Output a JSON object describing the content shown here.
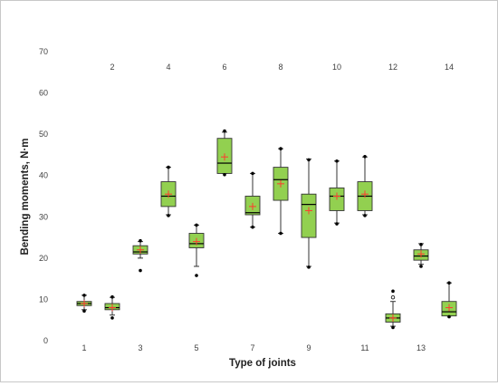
{
  "chart_data": {
    "type": "box",
    "title": "",
    "xlabel": "Type of joints",
    "ylabel": "Bending moments, N·m",
    "ylim": [
      0,
      70
    ],
    "yticks": [
      0,
      10,
      20,
      30,
      40,
      50,
      60,
      70
    ],
    "grid": false,
    "legend": "none",
    "x_tick_labels_bottom": [
      "1",
      "3",
      "5",
      "7",
      "9",
      "11",
      "13"
    ],
    "x_tick_labels_top": [
      "2",
      "4",
      "6",
      "8",
      "10",
      "12",
      "14"
    ],
    "colors": {
      "box_fill": "#92D050",
      "box_edge": "#333333",
      "median": "#000000",
      "mean_marker": "#FF3B2F",
      "whisker": "#333333"
    },
    "boxes": [
      {
        "category": "1",
        "whisker_low": 7.5,
        "q1": 8.5,
        "median": 9.0,
        "q3": 9.5,
        "whisker_high": 11.0,
        "mean": 9.0,
        "outliers": [
          7.2,
          11.0
        ]
      },
      {
        "category": "2",
        "whisker_low": 6.2,
        "q1": 7.5,
        "median": 8.0,
        "q3": 9.0,
        "whisker_high": 10.5,
        "mean": 8.0,
        "outliers": [
          5.5,
          10.6
        ]
      },
      {
        "category": "3",
        "whisker_low": 20.0,
        "q1": 21.0,
        "median": 21.5,
        "q3": 23.0,
        "whisker_high": 24.0,
        "mean": 22.0,
        "outliers": [
          17.0,
          24.2
        ]
      },
      {
        "category": "4",
        "whisker_low": 30.5,
        "q1": 32.5,
        "median": 35.0,
        "q3": 38.5,
        "whisker_high": 42.0,
        "mean": 35.5,
        "outliers": [
          30.3,
          42.0
        ]
      },
      {
        "category": "5",
        "whisker_low": 18.0,
        "q1": 22.5,
        "median": 23.5,
        "q3": 26.0,
        "whisker_high": 28.0,
        "mean": 24.0,
        "outliers": [
          15.8,
          28.0
        ]
      },
      {
        "category": "6",
        "whisker_low": 40.5,
        "q1": 40.5,
        "median": 43.0,
        "q3": 49.0,
        "whisker_high": 50.5,
        "mean": 44.5,
        "outliers": [
          40.2,
          50.8
        ]
      },
      {
        "category": "7",
        "whisker_low": 27.5,
        "q1": 30.5,
        "median": 31.0,
        "q3": 35.0,
        "whisker_high": 40.5,
        "mean": 32.5,
        "outliers": [
          27.5,
          40.5
        ]
      },
      {
        "category": "8",
        "whisker_low": 26.0,
        "q1": 34.0,
        "median": 39.0,
        "q3": 42.0,
        "whisker_high": 46.5,
        "mean": 38.0,
        "outliers": [
          26.0,
          46.5
        ]
      },
      {
        "category": "9",
        "whisker_low": 18.0,
        "q1": 25.0,
        "median": 33.0,
        "q3": 35.5,
        "whisker_high": 44.0,
        "mean": 31.5,
        "outliers": [
          17.8,
          43.8
        ]
      },
      {
        "category": "10",
        "whisker_low": 28.5,
        "q1": 31.5,
        "median": 35.0,
        "q3": 37.0,
        "whisker_high": 43.5,
        "mean": 35.0,
        "outliers": [
          28.3,
          43.5
        ]
      },
      {
        "category": "11",
        "whisker_low": 30.5,
        "q1": 31.5,
        "median": 35.0,
        "q3": 38.5,
        "whisker_high": 44.5,
        "mean": 35.5,
        "outliers": [
          30.3,
          44.6
        ]
      },
      {
        "category": "12",
        "whisker_low": 3.5,
        "q1": 4.5,
        "median": 5.5,
        "q3": 6.5,
        "whisker_high": 9.5,
        "mean": 5.5,
        "outliers": [
          3.2,
          10.5,
          12.0
        ]
      },
      {
        "category": "13",
        "whisker_low": 18.5,
        "q1": 19.5,
        "median": 20.5,
        "q3": 22.0,
        "whisker_high": 23.5,
        "mean": 21.0,
        "outliers": [
          18.0,
          23.3
        ]
      },
      {
        "category": "14",
        "whisker_low": 6.0,
        "q1": 6.0,
        "median": 7.0,
        "q3": 9.5,
        "whisker_high": 14.0,
        "mean": 8.0,
        "outliers": [
          5.8,
          14.0
        ]
      }
    ]
  }
}
